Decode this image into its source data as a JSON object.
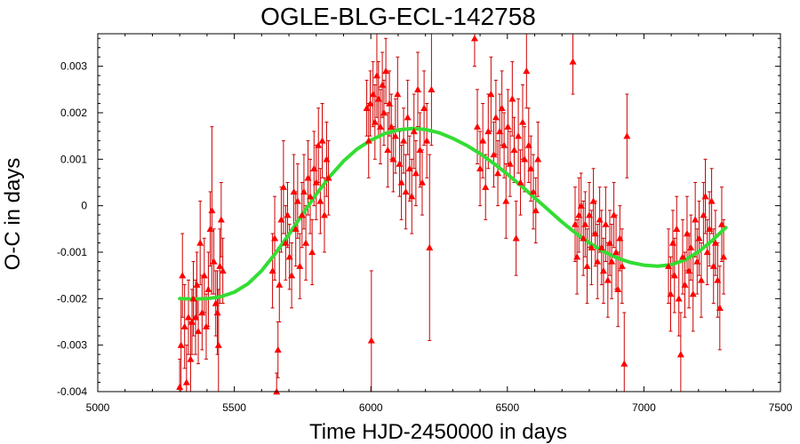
{
  "chart_data": {
    "type": "scatter",
    "title": "OGLE-BLG-ECL-142758",
    "xlabel": "Time HJD-2450000 in days",
    "ylabel": "O-C in days",
    "xlim": [
      5000,
      7500
    ],
    "ylim": [
      -0.004,
      0.0037
    ],
    "xticks": [
      5000,
      5500,
      6000,
      6500,
      7000,
      7500
    ],
    "yticks": [
      -0.004,
      -0.003,
      -0.002,
      -0.001,
      0,
      0.001,
      0.002,
      0.003
    ],
    "xtick_labels": [
      "5000",
      "5500",
      "6000",
      "6500",
      "7000",
      "7500"
    ],
    "ytick_labels": [
      "-0.004",
      "-0.003",
      "-0.002",
      "-0.001",
      "0",
      "0.001",
      "0.002",
      "0.003"
    ],
    "grid": false,
    "colors": {
      "points": "#ff0000",
      "errorbars": "#cc0000",
      "fit": "#33dd33"
    },
    "series": [
      {
        "kind": "points_with_errorbars",
        "marker": "triangle",
        "points": [
          {
            "x": 5300,
            "y": -0.0039,
            "err": 0.0006
          },
          {
            "x": 5305,
            "y": -0.003,
            "err": 0.001
          },
          {
            "x": 5310,
            "y": -0.0015,
            "err": 0.0009
          },
          {
            "x": 5318,
            "y": -0.0026,
            "err": 0.0009
          },
          {
            "x": 5325,
            "y": -0.0038,
            "err": 0.0008
          },
          {
            "x": 5332,
            "y": -0.0024,
            "err": 0.0008
          },
          {
            "x": 5340,
            "y": -0.0033,
            "err": 0.0008
          },
          {
            "x": 5345,
            "y": -0.0025,
            "err": 0.0007
          },
          {
            "x": 5350,
            "y": -0.002,
            "err": 0.0008
          },
          {
            "x": 5358,
            "y": -0.0024,
            "err": 0.0008
          },
          {
            "x": 5363,
            "y": -0.0017,
            "err": 0.0007
          },
          {
            "x": 5368,
            "y": -0.0027,
            "err": 0.0007
          },
          {
            "x": 5375,
            "y": -0.0008,
            "err": 0.0009
          },
          {
            "x": 5382,
            "y": -0.0023,
            "err": 0.0008
          },
          {
            "x": 5390,
            "y": -0.0015,
            "err": 0.0008
          },
          {
            "x": 5397,
            "y": -0.0026,
            "err": 0.0007
          },
          {
            "x": 5405,
            "y": -0.0018,
            "err": 0.0008
          },
          {
            "x": 5412,
            "y": -0.0005,
            "err": 0.0008
          },
          {
            "x": 5418,
            "y": -0.0001,
            "err": 0.0018
          },
          {
            "x": 5425,
            "y": -0.0012,
            "err": 0.0007
          },
          {
            "x": 5432,
            "y": -0.0021,
            "err": 0.0007
          },
          {
            "x": 5438,
            "y": -0.0023,
            "err": 0.0009
          },
          {
            "x": 5442,
            "y": -0.003,
            "err": 0.0012
          },
          {
            "x": 5447,
            "y": -0.0013,
            "err": 0.0008
          },
          {
            "x": 5452,
            "y": -0.0003,
            "err": 0.0008
          },
          {
            "x": 5458,
            "y": -0.0014,
            "err": 0.0007
          },
          {
            "x": 5640,
            "y": -0.0014,
            "err": 0.0008
          },
          {
            "x": 5648,
            "y": -0.0007,
            "err": 0.0009
          },
          {
            "x": 5655,
            "y": -0.004,
            "err": 0.0004
          },
          {
            "x": 5660,
            "y": -0.0031,
            "err": 0.0006
          },
          {
            "x": 5665,
            "y": -0.0017,
            "err": 0.0008
          },
          {
            "x": 5672,
            "y": -0.0003,
            "err": 0.0007
          },
          {
            "x": 5680,
            "y": 0.0004,
            "err": 0.001
          },
          {
            "x": 5688,
            "y": -0.0008,
            "err": 0.0008
          },
          {
            "x": 5695,
            "y": -0.0002,
            "err": 0.0007
          },
          {
            "x": 5702,
            "y": -0.0011,
            "err": 0.0007
          },
          {
            "x": 5710,
            "y": -0.0015,
            "err": 0.0007
          },
          {
            "x": 5718,
            "y": 0.0003,
            "err": 0.0008
          },
          {
            "x": 5725,
            "y": -0.0005,
            "err": 0.0008
          },
          {
            "x": 5732,
            "y": 0.0001,
            "err": 0.0008
          },
          {
            "x": 5740,
            "y": -0.0013,
            "err": 0.0007
          },
          {
            "x": 5748,
            "y": -0.0002,
            "err": 0.0007
          },
          {
            "x": 5755,
            "y": 0.0003,
            "err": 0.0008
          },
          {
            "x": 5762,
            "y": -0.0008,
            "err": 0.0008
          },
          {
            "x": 5770,
            "y": 0.0006,
            "err": 0.0008
          },
          {
            "x": 5778,
            "y": 0.0002,
            "err": 0.0008
          },
          {
            "x": 5785,
            "y": -0.001,
            "err": 0.0007
          },
          {
            "x": 5792,
            "y": 0.0008,
            "err": 0.0008
          },
          {
            "x": 5800,
            "y": 0.0005,
            "err": 0.0008
          },
          {
            "x": 5808,
            "y": 0.0013,
            "err": 0.0008
          },
          {
            "x": 5815,
            "y": 0.0001,
            "err": 0.0007
          },
          {
            "x": 5822,
            "y": 0.0014,
            "err": 0.0008
          },
          {
            "x": 5830,
            "y": -0.0002,
            "err": 0.0008
          },
          {
            "x": 5838,
            "y": 0.001,
            "err": 0.0008
          },
          {
            "x": 5845,
            "y": 0.0006,
            "err": 0.0008
          },
          {
            "x": 5985,
            "y": 0.0021,
            "err": 0.0006
          },
          {
            "x": 5992,
            "y": 0.0014,
            "err": 0.0008
          },
          {
            "x": 5998,
            "y": 0.0022,
            "err": 0.0007
          },
          {
            "x": 6002,
            "y": -0.0029,
            "err": 0.0015
          },
          {
            "x": 6008,
            "y": 0.0024,
            "err": 0.0007
          },
          {
            "x": 6015,
            "y": 0.0018,
            "err": 0.0008
          },
          {
            "x": 6022,
            "y": 0.0028,
            "err": 0.0009
          },
          {
            "x": 6028,
            "y": 0.0023,
            "err": 0.0008
          },
          {
            "x": 6035,
            "y": 0.0017,
            "err": 0.0008
          },
          {
            "x": 6042,
            "y": 0.0026,
            "err": 0.0007
          },
          {
            "x": 6048,
            "y": 0.002,
            "err": 0.0007
          },
          {
            "x": 6055,
            "y": 0.0029,
            "err": 0.0007
          },
          {
            "x": 6062,
            "y": 0.0012,
            "err": 0.0008
          },
          {
            "x": 6068,
            "y": 0.0022,
            "err": 0.0007
          },
          {
            "x": 6075,
            "y": 0.0017,
            "err": 0.0007
          },
          {
            "x": 6082,
            "y": 0.001,
            "err": 0.0007
          },
          {
            "x": 6090,
            "y": 0.0015,
            "err": 0.0008
          },
          {
            "x": 6098,
            "y": 0.0024,
            "err": 0.0008
          },
          {
            "x": 6105,
            "y": 0.0009,
            "err": 0.0007
          },
          {
            "x": 6112,
            "y": 0.0005,
            "err": 0.0008
          },
          {
            "x": 6120,
            "y": 0.0014,
            "err": 0.0007
          },
          {
            "x": 6128,
            "y": 0.0003,
            "err": 0.0008
          },
          {
            "x": 6135,
            "y": 0.0019,
            "err": 0.0008
          },
          {
            "x": 6142,
            "y": 0.0008,
            "err": 0.0007
          },
          {
            "x": 6150,
            "y": 0.0002,
            "err": 0.0008
          },
          {
            "x": 6158,
            "y": 0.0016,
            "err": 0.0008
          },
          {
            "x": 6165,
            "y": 0.0007,
            "err": 0.0007
          },
          {
            "x": 6172,
            "y": 0.0025,
            "err": 0.0008
          },
          {
            "x": 6180,
            "y": 0.0012,
            "err": 0.0008
          },
          {
            "x": 6188,
            "y": 0.0005,
            "err": 0.0007
          },
          {
            "x": 6195,
            "y": 0.0021,
            "err": 0.0008
          },
          {
            "x": 6205,
            "y": 0.0014,
            "err": 0.0008
          },
          {
            "x": 6215,
            "y": -0.0009,
            "err": 0.002
          },
          {
            "x": 6222,
            "y": 0.0025,
            "err": 0.0012
          },
          {
            "x": 6380,
            "y": 0.0036,
            "err": 0.0006
          },
          {
            "x": 6390,
            "y": 0.0017,
            "err": 0.0008
          },
          {
            "x": 6400,
            "y": 0.0008,
            "err": 0.0008
          },
          {
            "x": 6410,
            "y": 0.0014,
            "err": 0.0008
          },
          {
            "x": 6420,
            "y": 0.0004,
            "err": 0.0007
          },
          {
            "x": 6430,
            "y": 0.0016,
            "err": 0.0008
          },
          {
            "x": 6440,
            "y": 0.0024,
            "err": 0.0008
          },
          {
            "x": 6450,
            "y": 0.0011,
            "err": 0.0007
          },
          {
            "x": 6458,
            "y": 0.0019,
            "err": 0.0008
          },
          {
            "x": 6465,
            "y": 0.0007,
            "err": 0.0007
          },
          {
            "x": 6472,
            "y": 0.0016,
            "err": 0.0008
          },
          {
            "x": 6480,
            "y": 0.0021,
            "err": 0.0008
          },
          {
            "x": 6488,
            "y": 0.0013,
            "err": 0.0007
          },
          {
            "x": 6495,
            "y": 0.0001,
            "err": 0.0008
          },
          {
            "x": 6502,
            "y": 0.0017,
            "err": 0.0008
          },
          {
            "x": 6510,
            "y": 0.0009,
            "err": 0.0007
          },
          {
            "x": 6518,
            "y": 0.0023,
            "err": 0.0008
          },
          {
            "x": 6525,
            "y": 0.0012,
            "err": 0.0007
          },
          {
            "x": 6532,
            "y": -0.0007,
            "err": 0.0008
          },
          {
            "x": 6540,
            "y": 0.0015,
            "err": 0.0008
          },
          {
            "x": 6548,
            "y": 0.0005,
            "err": 0.0007
          },
          {
            "x": 6556,
            "y": 0.0018,
            "err": 0.0008
          },
          {
            "x": 6563,
            "y": 0.001,
            "err": 0.0007
          },
          {
            "x": 6570,
            "y": 0.0029,
            "err": 0.0008
          },
          {
            "x": 6578,
            "y": 0.0013,
            "err": 0.0008
          },
          {
            "x": 6586,
            "y": 0.0008,
            "err": 0.0007
          },
          {
            "x": 6595,
            "y": 0.0003,
            "err": 0.0008
          },
          {
            "x": 6604,
            "y": -0.0001,
            "err": 0.0007
          },
          {
            "x": 6612,
            "y": 0.001,
            "err": 0.0008
          },
          {
            "x": 6740,
            "y": 0.0031,
            "err": 0.0007
          },
          {
            "x": 6748,
            "y": -0.0004,
            "err": 0.0008
          },
          {
            "x": 6755,
            "y": -0.0011,
            "err": 0.0008
          },
          {
            "x": 6762,
            "y": -0.0002,
            "err": 0.0008
          },
          {
            "x": 6770,
            "y": 0.0,
            "err": 0.0007
          },
          {
            "x": 6778,
            "y": -0.0007,
            "err": 0.0008
          },
          {
            "x": 6785,
            "y": -0.0004,
            "err": 0.0007
          },
          {
            "x": 6792,
            "y": -0.0013,
            "err": 0.0008
          },
          {
            "x": 6800,
            "y": -0.0002,
            "err": 0.0007
          },
          {
            "x": 6808,
            "y": -0.0009,
            "err": 0.0008
          },
          {
            "x": 6815,
            "y": 0.0001,
            "err": 0.0007
          },
          {
            "x": 6822,
            "y": -0.0006,
            "err": 0.0007
          },
          {
            "x": 6830,
            "y": -0.0012,
            "err": 0.0008
          },
          {
            "x": 6838,
            "y": -0.0003,
            "err": 0.0007
          },
          {
            "x": 6845,
            "y": -0.0009,
            "err": 0.0008
          },
          {
            "x": 6852,
            "y": -0.0014,
            "err": 0.0007
          },
          {
            "x": 6860,
            "y": -0.0004,
            "err": 0.0008
          },
          {
            "x": 6868,
            "y": -0.0016,
            "err": 0.0008
          },
          {
            "x": 6875,
            "y": -0.0008,
            "err": 0.0007
          },
          {
            "x": 6882,
            "y": -0.0012,
            "err": 0.0008
          },
          {
            "x": 6890,
            "y": -0.0002,
            "err": 0.0007
          },
          {
            "x": 6898,
            "y": -0.001,
            "err": 0.0008
          },
          {
            "x": 6905,
            "y": -0.0018,
            "err": 0.0008
          },
          {
            "x": 6912,
            "y": -0.0007,
            "err": 0.0007
          },
          {
            "x": 6920,
            "y": -0.0013,
            "err": 0.0008
          },
          {
            "x": 6928,
            "y": -0.0034,
            "err": 0.0011
          },
          {
            "x": 6938,
            "y": 0.0015,
            "err": 0.0009
          },
          {
            "x": 7090,
            "y": -0.0013,
            "err": 0.0008
          },
          {
            "x": 7098,
            "y": -0.0019,
            "err": 0.0008
          },
          {
            "x": 7106,
            "y": -0.0008,
            "err": 0.0007
          },
          {
            "x": 7112,
            "y": -0.0015,
            "err": 0.0008
          },
          {
            "x": 7120,
            "y": -0.0005,
            "err": 0.0007
          },
          {
            "x": 7128,
            "y": -0.002,
            "err": 0.0008
          },
          {
            "x": 7135,
            "y": -0.0032,
            "err": 0.0009
          },
          {
            "x": 7142,
            "y": -0.0011,
            "err": 0.0008
          },
          {
            "x": 7150,
            "y": -0.0017,
            "err": 0.0007
          },
          {
            "x": 7158,
            "y": -0.0006,
            "err": 0.0008
          },
          {
            "x": 7165,
            "y": -0.0014,
            "err": 0.0008
          },
          {
            "x": 7172,
            "y": -0.0009,
            "err": 0.0007
          },
          {
            "x": 7180,
            "y": -0.0019,
            "err": 0.0008
          },
          {
            "x": 7188,
            "y": -0.0003,
            "err": 0.0008
          },
          {
            "x": 7195,
            "y": -0.0012,
            "err": 0.0007
          },
          {
            "x": 7202,
            "y": -0.0007,
            "err": 0.0008
          },
          {
            "x": 7210,
            "y": -0.0016,
            "err": 0.0008
          },
          {
            "x": 7218,
            "y": -0.0002,
            "err": 0.0007
          },
          {
            "x": 7225,
            "y": 0.0002,
            "err": 0.0008
          },
          {
            "x": 7232,
            "y": -0.001,
            "err": 0.0007
          },
          {
            "x": 7240,
            "y": -0.0005,
            "err": 0.0008
          },
          {
            "x": 7248,
            "y": 0.0001,
            "err": 0.0007
          },
          {
            "x": 7255,
            "y": -0.0013,
            "err": 0.0008
          },
          {
            "x": 7262,
            "y": -0.0008,
            "err": 0.0007
          },
          {
            "x": 7270,
            "y": -0.0016,
            "err": 0.0008
          },
          {
            "x": 7278,
            "y": -0.0022,
            "err": 0.0009
          },
          {
            "x": 7285,
            "y": -0.0004,
            "err": 0.0008
          },
          {
            "x": 7292,
            "y": -0.0011,
            "err": 0.0008
          }
        ]
      },
      {
        "kind": "fit_curve",
        "x": [
          5300,
          5350,
          5400,
          5450,
          5500,
          5550,
          5600,
          5650,
          5700,
          5750,
          5800,
          5850,
          5900,
          5950,
          6000,
          6050,
          6100,
          6150,
          6200,
          6250,
          6300,
          6350,
          6400,
          6450,
          6500,
          6550,
          6600,
          6650,
          6700,
          6750,
          6800,
          6850,
          6900,
          6950,
          7000,
          7050,
          7100,
          7150,
          7200,
          7250,
          7300
        ],
        "y": [
          -0.002,
          -0.00201,
          -0.002,
          -0.00196,
          -0.00186,
          -0.00168,
          -0.0014,
          -0.00103,
          -0.00062,
          -0.00018,
          0.00025,
          0.00063,
          0.00096,
          0.00122,
          0.00141,
          0.00155,
          0.00163,
          0.00166,
          0.00164,
          0.00157,
          0.00145,
          0.0013,
          0.00112,
          0.00091,
          0.00068,
          0.00043,
          0.00017,
          -9e-05,
          -0.00035,
          -0.00059,
          -0.0008,
          -0.00098,
          -0.00112,
          -0.00122,
          -0.00128,
          -0.0013,
          -0.00127,
          -0.00117,
          -0.00099,
          -0.00075,
          -0.00047
        ]
      }
    ]
  }
}
